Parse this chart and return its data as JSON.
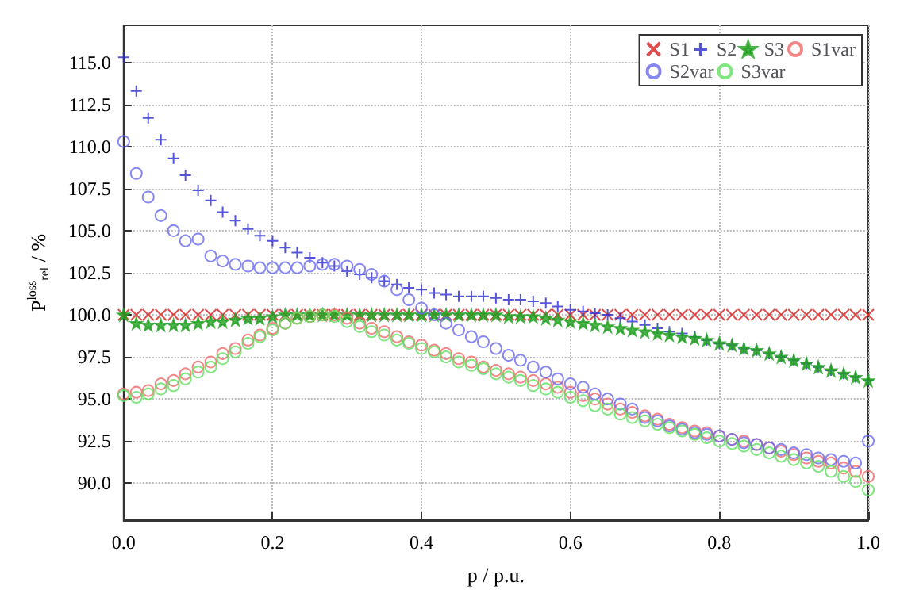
{
  "chart_data": {
    "type": "scatter",
    "xlabel": "p / p.u.",
    "ylabel": "P$^{loss}$$_{rel}$ / %",
    "x": [
      0,
      0.017,
      0.033,
      0.05,
      0.067,
      0.083,
      0.1,
      0.117,
      0.133,
      0.15,
      0.167,
      0.183,
      0.2,
      0.217,
      0.233,
      0.25,
      0.267,
      0.283,
      0.3,
      0.317,
      0.333,
      0.35,
      0.367,
      0.383,
      0.4,
      0.417,
      0.433,
      0.45,
      0.467,
      0.483,
      0.5,
      0.517,
      0.533,
      0.55,
      0.567,
      0.583,
      0.6,
      0.617,
      0.633,
      0.65,
      0.667,
      0.683,
      0.7,
      0.717,
      0.733,
      0.75,
      0.767,
      0.783,
      0.8,
      0.817,
      0.833,
      0.85,
      0.867,
      0.883,
      0.9,
      0.917,
      0.933,
      0.95,
      0.967,
      0.983,
      1
    ],
    "xlim": [
      0,
      1
    ],
    "xticks": [
      {
        "value": 0,
        "label": "0.0"
      },
      0.2,
      0.4,
      0.6,
      0.8,
      {
        "value": 1,
        "label": "1.0"
      }
    ],
    "ylim": [
      87.8,
      117.2
    ],
    "yticks": [
      {
        "value": 90,
        "label": "90.0"
      },
      92.5,
      {
        "value": 95,
        "label": "95.0"
      },
      97.5,
      {
        "value": 100,
        "label": "100.0"
      },
      102.5,
      {
        "value": 105,
        "label": "105.0"
      },
      107.5,
      {
        "value": 110,
        "label": "110.0"
      },
      112.5,
      {
        "value": 115,
        "label": "115.0"
      }
    ],
    "grid": true,
    "legend": "top right",
    "series": [
      {
        "name": "S1",
        "color": "#d42020",
        "marker": "cross",
        "values": [
          100,
          100,
          100,
          100,
          100,
          100,
          100,
          100,
          100,
          100,
          100,
          100,
          100,
          100,
          100,
          100,
          100,
          100,
          100,
          100,
          100,
          100,
          100,
          100,
          100,
          100,
          100,
          100,
          100,
          100,
          100,
          100,
          100,
          100,
          100,
          100,
          100,
          100,
          100,
          100,
          100,
          100,
          100,
          100,
          100,
          100,
          100,
          100,
          100,
          100,
          100,
          100,
          100,
          100,
          100,
          100,
          100,
          100,
          100,
          100,
          100
        ]
      },
      {
        "name": "S2",
        "color": "#2a2ad0",
        "marker": "plus",
        "values": [
          115.3,
          113.3,
          111.7,
          110.4,
          109.3,
          108.3,
          107.4,
          106.8,
          106.1,
          105.6,
          105.1,
          104.7,
          104.4,
          104.0,
          103.7,
          103.4,
          103.1,
          102.9,
          102.6,
          102.4,
          102.2,
          102.0,
          101.8,
          101.6,
          101.5,
          101.3,
          101.2,
          101.1,
          101.1,
          101.1,
          101.0,
          100.9,
          100.9,
          100.8,
          100.7,
          100.5,
          100.3,
          100.2,
          100.1,
          100.0,
          99.8,
          99.6,
          99.4,
          99.2,
          99.0,
          98.9,
          98.7,
          98.5,
          98.3,
          98.2,
          98.0,
          97.9,
          97.7,
          97.5,
          97.3,
          97.1,
          96.9,
          96.7,
          96.5,
          96.3,
          96.1
        ]
      },
      {
        "name": "S3",
        "color": "#20a020",
        "marker": "star",
        "values": [
          100,
          99.5,
          99.4,
          99.4,
          99.4,
          99.4,
          99.5,
          99.6,
          99.6,
          99.7,
          99.8,
          99.8,
          99.9,
          100,
          100,
          100,
          100,
          100,
          100,
          100,
          100,
          100,
          100,
          100,
          100,
          100,
          100,
          100,
          100,
          100,
          100,
          99.9,
          99.9,
          99.9,
          99.8,
          99.7,
          99.6,
          99.5,
          99.4,
          99.3,
          99.2,
          99.1,
          99.0,
          98.9,
          98.8,
          98.7,
          98.6,
          98.5,
          98.3,
          98.2,
          98.0,
          97.9,
          97.7,
          97.5,
          97.3,
          97.1,
          96.9,
          96.7,
          96.5,
          96.3,
          96.1
        ]
      },
      {
        "name": "S1var",
        "color": "#f06868",
        "marker": "circle",
        "values": [
          95.3,
          95.4,
          95.5,
          95.9,
          96.1,
          96.5,
          96.9,
          97.2,
          97.7,
          98.0,
          98.5,
          98.8,
          99.2,
          99.5,
          99.8,
          99.9,
          100.0,
          100.0,
          99.8,
          99.5,
          99.2,
          99.0,
          98.7,
          98.4,
          98.2,
          97.9,
          97.7,
          97.4,
          97.2,
          96.9,
          96.7,
          96.5,
          96.3,
          96.1,
          95.9,
          95.7,
          95.4,
          95.2,
          95.0,
          94.7,
          94.4,
          94.2,
          94.0,
          93.8,
          93.5,
          93.3,
          93.1,
          93.0,
          92.8,
          92.6,
          92.5,
          92.3,
          92.1,
          91.9,
          91.7,
          91.5,
          91.3,
          91.2,
          90.9,
          90.7,
          90.4
        ]
      },
      {
        "name": "S2var",
        "color": "#6a6af0",
        "marker": "circle",
        "values": [
          110.3,
          108.4,
          107.0,
          105.9,
          105.0,
          104.4,
          104.5,
          103.5,
          103.2,
          103.0,
          102.9,
          102.8,
          102.8,
          102.8,
          102.8,
          102.9,
          103.0,
          103.0,
          102.9,
          102.7,
          102.4,
          102.0,
          101.5,
          100.9,
          100.4,
          100.0,
          99.5,
          99.1,
          98.7,
          98.4,
          98.0,
          97.6,
          97.3,
          96.9,
          96.6,
          96.2,
          95.9,
          95.7,
          95.3,
          95.0,
          94.7,
          94.4,
          93.9,
          93.7,
          93.4,
          93.2,
          93.0,
          92.9,
          92.8,
          92.6,
          92.4,
          92.3,
          92.1,
          92.0,
          91.8,
          91.7,
          91.5,
          91.4,
          91.3,
          91.2,
          92.5
        ]
      },
      {
        "name": "S3var",
        "color": "#60e060",
        "marker": "circle",
        "values": [
          95.2,
          95.1,
          95.3,
          95.6,
          95.8,
          96.2,
          96.6,
          96.9,
          97.4,
          97.8,
          98.3,
          98.7,
          99.1,
          99.5,
          99.8,
          99.9,
          100.0,
          99.9,
          99.6,
          99.3,
          99.0,
          98.8,
          98.5,
          98.3,
          98.0,
          97.8,
          97.5,
          97.2,
          97.0,
          96.8,
          96.5,
          96.3,
          96.1,
          95.8,
          95.6,
          95.4,
          95.1,
          94.9,
          94.6,
          94.4,
          94.1,
          93.9,
          93.7,
          93.5,
          93.3,
          93.1,
          92.9,
          92.7,
          92.5,
          92.35,
          92.2,
          92.0,
          91.8,
          91.6,
          91.4,
          91.2,
          91.0,
          90.7,
          90.4,
          90.1,
          89.6
        ]
      }
    ]
  }
}
